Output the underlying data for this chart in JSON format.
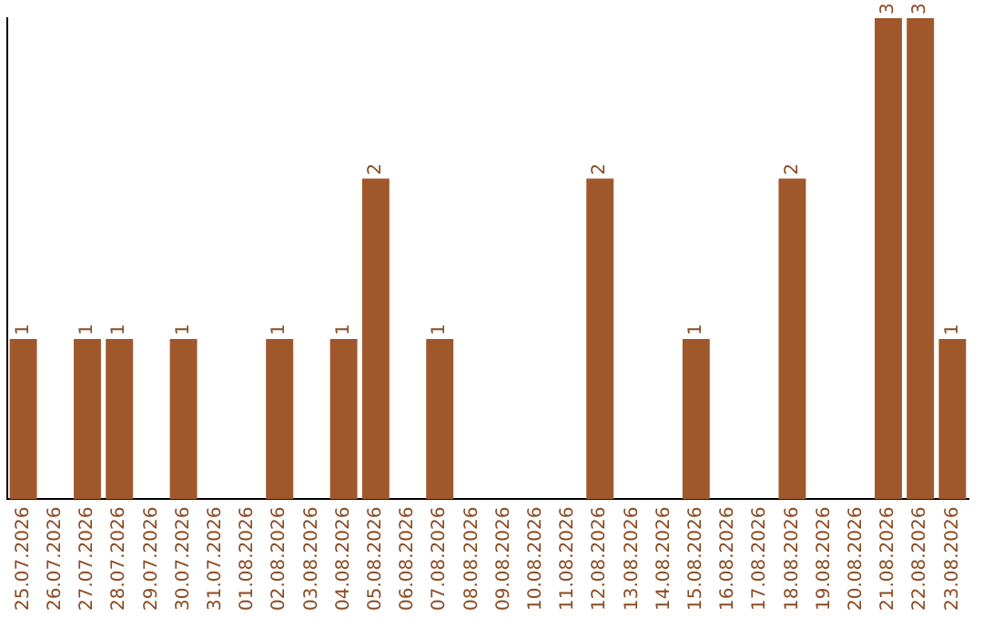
{
  "chart_data": {
    "type": "bar",
    "categories": [
      "25.07.2026",
      "26.07.2026",
      "27.07.2026",
      "28.07.2026",
      "29.07.2026",
      "30.07.2026",
      "31.07.2026",
      "01.08.2026",
      "02.08.2026",
      "03.08.2026",
      "04.08.2026",
      "05.08.2026",
      "06.08.2026",
      "07.08.2026",
      "08.08.2026",
      "09.08.2026",
      "10.08.2026",
      "11.08.2026",
      "12.08.2026",
      "13.08.2026",
      "14.08.2026",
      "15.08.2026",
      "16.08.2026",
      "17.08.2026",
      "18.08.2026",
      "19.08.2026",
      "20.08.2026",
      "21.08.2026",
      "22.08.2026",
      "23.08.2026"
    ],
    "values": [
      1,
      0,
      1,
      1,
      0,
      1,
      0,
      0,
      1,
      0,
      1,
      2,
      0,
      1,
      0,
      0,
      0,
      0,
      2,
      0,
      0,
      1,
      0,
      0,
      2,
      0,
      0,
      3,
      3,
      1
    ],
    "value_labels": [
      "1",
      null,
      "1",
      "1",
      null,
      "1",
      null,
      null,
      "1",
      null,
      "1",
      "2",
      null,
      "1",
      null,
      null,
      null,
      null,
      "2",
      null,
      null,
      "1",
      null,
      null,
      "2",
      null,
      null,
      "3",
      "3",
      "1"
    ],
    "color": "#a0572b",
    "tick_labels": "x",
    "grid": false,
    "legend": false
  }
}
